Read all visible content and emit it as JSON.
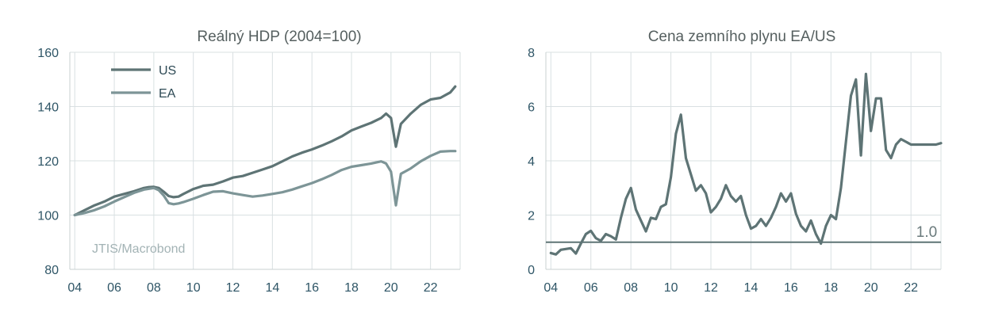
{
  "chart_data": [
    {
      "type": "line",
      "title": "Reálný HDP (2004=100)",
      "xlabel": "",
      "ylabel": "",
      "xlim": [
        2003.75,
        2023.5
      ],
      "ylim": [
        80,
        160
      ],
      "y_ticks": [
        "80",
        "100",
        "120",
        "140",
        "160"
      ],
      "x_ticks": [
        "04",
        "06",
        "08",
        "10",
        "12",
        "14",
        "16",
        "18",
        "20",
        "22"
      ],
      "x_tick_values": [
        2004,
        2006,
        2008,
        2010,
        2012,
        2014,
        2016,
        2018,
        2020,
        2022
      ],
      "grid": true,
      "legend_position": "top-left",
      "annotation": "JTIS/Macrobond",
      "series": [
        {
          "name": "US",
          "color": "#5e7475",
          "x": [
            2004.0,
            2004.5,
            2005.0,
            2005.5,
            2006.0,
            2006.5,
            2007.0,
            2007.5,
            2007.75,
            2008.0,
            2008.25,
            2008.5,
            2008.75,
            2009.0,
            2009.25,
            2009.5,
            2010.0,
            2010.5,
            2011.0,
            2011.5,
            2012.0,
            2012.5,
            2013.0,
            2013.5,
            2014.0,
            2014.5,
            2015.0,
            2015.5,
            2016.0,
            2016.5,
            2017.0,
            2017.5,
            2018.0,
            2018.5,
            2019.0,
            2019.5,
            2019.75,
            2020.0,
            2020.25,
            2020.5,
            2021.0,
            2021.5,
            2022.0,
            2022.5,
            2023.0,
            2023.25
          ],
          "values": [
            100.0,
            101.8,
            103.6,
            105.0,
            106.8,
            107.8,
            108.8,
            110.0,
            110.3,
            110.4,
            110.0,
            108.6,
            107.0,
            106.6,
            106.8,
            107.8,
            109.6,
            110.8,
            111.2,
            112.4,
            113.8,
            114.4,
            115.6,
            116.8,
            118.0,
            119.8,
            121.6,
            123.0,
            124.2,
            125.6,
            127.2,
            129.0,
            131.2,
            132.6,
            134.0,
            135.8,
            137.4,
            135.8,
            125.2,
            133.6,
            137.4,
            140.6,
            142.6,
            143.2,
            145.2,
            147.4
          ]
        },
        {
          "name": "EA",
          "color": "#7d9597",
          "x": [
            2004.0,
            2004.5,
            2005.0,
            2005.5,
            2006.0,
            2006.5,
            2007.0,
            2007.5,
            2008.0,
            2008.25,
            2008.5,
            2008.75,
            2009.0,
            2009.25,
            2009.5,
            2010.0,
            2010.5,
            2011.0,
            2011.5,
            2012.0,
            2012.5,
            2013.0,
            2013.5,
            2014.0,
            2014.5,
            2015.0,
            2015.5,
            2016.0,
            2016.5,
            2017.0,
            2017.5,
            2018.0,
            2018.5,
            2019.0,
            2019.5,
            2019.75,
            2020.0,
            2020.25,
            2020.5,
            2021.0,
            2021.5,
            2022.0,
            2022.5,
            2023.0,
            2023.25
          ],
          "values": [
            100.0,
            100.8,
            101.8,
            103.2,
            105.0,
            106.6,
            108.2,
            109.4,
            110.0,
            109.2,
            107.2,
            104.4,
            104.0,
            104.3,
            104.8,
            106.0,
            107.4,
            108.6,
            108.8,
            108.0,
            107.4,
            106.8,
            107.2,
            107.8,
            108.4,
            109.4,
            110.6,
            111.8,
            113.2,
            114.8,
            116.6,
            117.8,
            118.4,
            119.0,
            119.8,
            119.0,
            116.0,
            103.6,
            115.2,
            117.2,
            119.8,
            121.8,
            123.4,
            123.6,
            123.6
          ]
        }
      ]
    },
    {
      "type": "line",
      "title": "Cena zemního plynu EA/US",
      "xlabel": "",
      "ylabel": "",
      "xlim": [
        2003.75,
        2023.5
      ],
      "ylim": [
        0,
        8
      ],
      "y_ticks": [
        "0",
        "2",
        "4",
        "6",
        "8"
      ],
      "x_ticks": [
        "04",
        "06",
        "08",
        "10",
        "12",
        "14",
        "16",
        "18",
        "20",
        "22"
      ],
      "x_tick_values": [
        2004,
        2006,
        2008,
        2010,
        2012,
        2014,
        2016,
        2018,
        2020,
        2022
      ],
      "grid": true,
      "legend_position": "none",
      "reference_line": {
        "value": 1.0,
        "label": "1.0"
      },
      "series": [
        {
          "color": "#5e7475",
          "x": [
            2004.0,
            2004.25,
            2004.5,
            2004.75,
            2005.0,
            2005.25,
            2005.5,
            2005.75,
            2006.0,
            2006.25,
            2006.5,
            2006.75,
            2007.0,
            2007.25,
            2007.5,
            2007.75,
            2008.0,
            2008.25,
            2008.5,
            2008.75,
            2009.0,
            2009.25,
            2009.5,
            2009.75,
            2010.0,
            2010.25,
            2010.5,
            2010.75,
            2011.0,
            2011.25,
            2011.5,
            2011.75,
            2012.0,
            2012.25,
            2012.5,
            2012.75,
            2013.0,
            2013.25,
            2013.5,
            2013.75,
            2014.0,
            2014.25,
            2014.5,
            2014.75,
            2015.0,
            2015.25,
            2015.5,
            2015.75,
            2016.0,
            2016.25,
            2016.5,
            2016.75,
            2017.0,
            2017.25,
            2017.5,
            2017.75,
            2018.0,
            2018.25,
            2018.5,
            2018.75,
            2019.0,
            2019.25,
            2019.5,
            2019.75,
            2020.0,
            2020.25,
            2020.5,
            2020.75,
            2021.0,
            2021.25,
            2021.5,
            2021.75,
            2022.0,
            2022.25,
            2022.5,
            2022.75,
            2023.0,
            2023.25,
            2023.5
          ],
          "values": [
            0.6,
            0.55,
            0.72,
            0.75,
            0.78,
            0.58,
            0.95,
            1.3,
            1.42,
            1.15,
            1.05,
            1.3,
            1.22,
            1.1,
            1.9,
            2.6,
            3.0,
            2.2,
            1.8,
            1.4,
            1.9,
            1.85,
            2.3,
            2.4,
            3.4,
            5.0,
            5.7,
            4.1,
            3.5,
            2.9,
            3.1,
            2.8,
            2.1,
            2.3,
            2.6,
            3.1,
            2.7,
            2.5,
            2.7,
            2.0,
            1.5,
            1.6,
            1.85,
            1.6,
            1.9,
            2.3,
            2.8,
            2.5,
            2.8,
            2.05,
            1.6,
            1.4,
            1.8,
            1.3,
            0.95,
            1.6,
            2.0,
            1.85,
            3.0,
            4.7,
            6.4,
            7.0,
            4.2,
            7.2,
            5.1,
            6.3,
            6.3,
            4.4,
            4.1,
            4.6,
            4.8,
            4.7,
            4.6,
            4.6,
            4.6,
            4.6,
            4.6,
            4.6,
            4.65
          ]
        }
      ]
    }
  ]
}
